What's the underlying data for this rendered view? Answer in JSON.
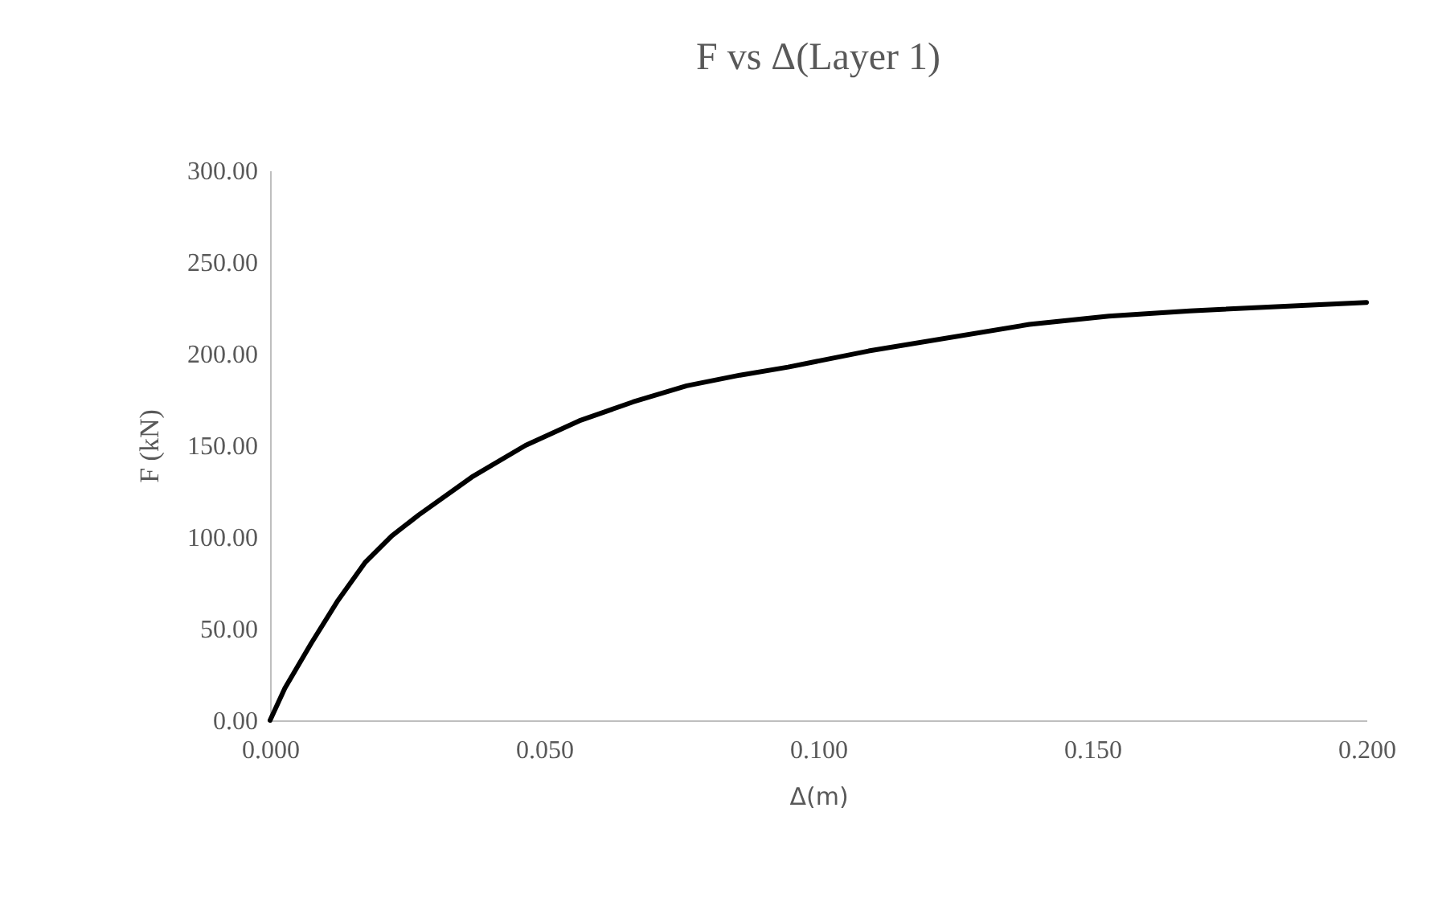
{
  "chart_data": {
    "type": "line",
    "title": "F vs Δ(Layer 1)",
    "xlabel": "Δ(m)",
    "ylabel": "F (kN)",
    "x": [
      0,
      0.0027,
      0.0075,
      0.0124,
      0.0173,
      0.0222,
      0.0271,
      0.0368,
      0.0466,
      0.0564,
      0.0662,
      0.076,
      0.0857,
      0.0945,
      0.1092,
      0.1385,
      0.153,
      0.1678,
      0.2
    ],
    "series": [
      {
        "color": "#000000",
        "values": [
          0,
          17.5,
          42,
          65.5,
          86,
          100.6,
          112,
          132.7,
          150,
          163.4,
          173.7,
          182.5,
          188.3,
          192.7,
          201.5,
          216,
          220.5,
          223.4,
          228
        ]
      }
    ],
    "xlim": [
      0,
      0.2
    ],
    "ylim": [
      0,
      300
    ],
    "xticks": [
      {
        "value": 0,
        "label": "0.000"
      },
      {
        "value": 0.05,
        "label": "0.050"
      },
      {
        "value": 0.1,
        "label": "0.100"
      },
      {
        "value": 0.15,
        "label": "0.150"
      },
      {
        "value": 0.2,
        "label": "0.200"
      }
    ],
    "yticks": [
      {
        "value": 0,
        "label": "0.00"
      },
      {
        "value": 50,
        "label": "50.00"
      },
      {
        "value": 100,
        "label": "100.00"
      },
      {
        "value": 150,
        "label": "150.00"
      },
      {
        "value": 200,
        "label": "200.00"
      },
      {
        "value": 250,
        "label": "250.00"
      },
      {
        "value": 300,
        "label": "300.00"
      }
    ],
    "grid": false,
    "legend": false,
    "marker": "none",
    "line_style": "solid"
  }
}
